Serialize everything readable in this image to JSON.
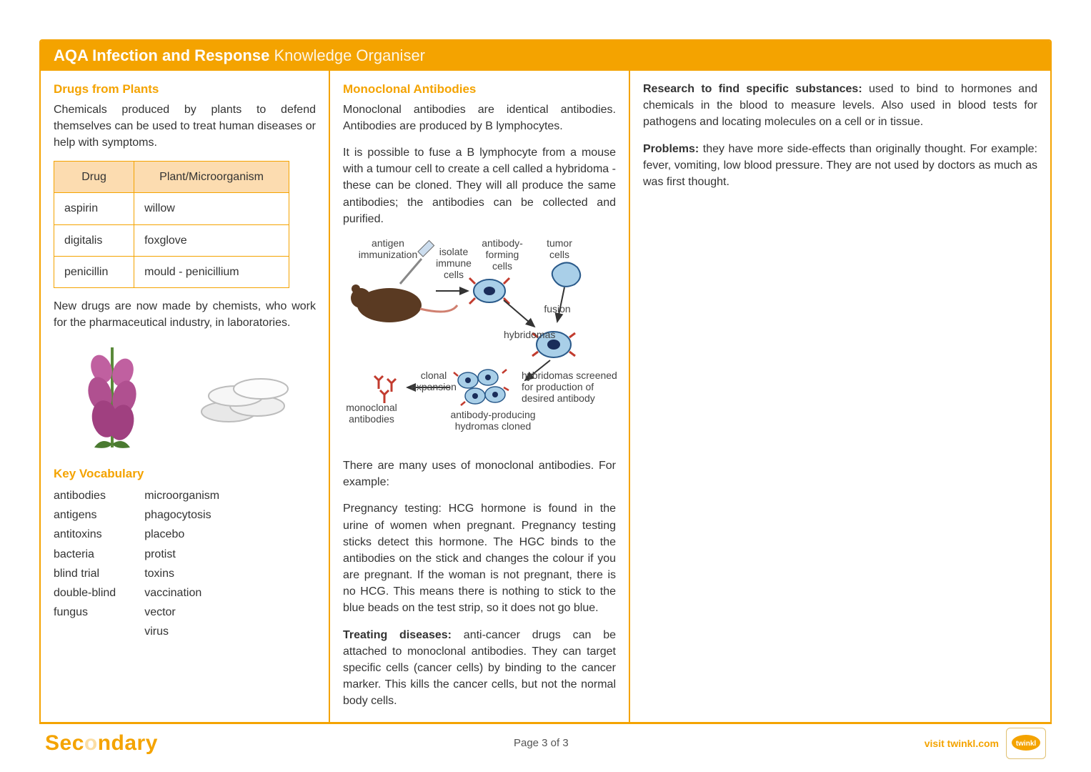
{
  "colors": {
    "accent": "#f4a300",
    "header_text": "#ffffff",
    "body_text": "#333333",
    "table_header_bg": "#fcdcb0",
    "border": "#f4a300"
  },
  "header": {
    "title_bold": "AQA Infection and Response",
    "title_light": " Knowledge Organiser"
  },
  "col1": {
    "title": "Drugs from Plants",
    "intro": "Chemicals produced by plants to defend themselves can be used to treat human diseases or help with symptoms.",
    "table": {
      "headers": [
        "Drug",
        "Plant/Microorganism"
      ],
      "rows": [
        [
          "aspirin",
          "willow"
        ],
        [
          "digitalis",
          "foxglove"
        ],
        [
          "penicillin",
          "mould - penicillium"
        ]
      ]
    },
    "outro": "New drugs are now made by chemists, who work for the pharmaceutical industry, in laboratories.",
    "vocab_title": "Key Vocabulary",
    "vocab_left": [
      "antibodies",
      "antigens",
      "antitoxins",
      "bacteria",
      "blind trial",
      "double-blind",
      "fungus"
    ],
    "vocab_right": [
      "microorganism",
      "phagocytosis",
      "placebo",
      "protist",
      "toxins",
      "vaccination",
      "vector",
      "virus"
    ]
  },
  "col2": {
    "title": "Monoclonal Antibodies",
    "p1": "Monoclonal antibodies are identical antibodies. Antibodies are produced by B lymphocytes.",
    "p2": "It is possible to fuse a B lymphocyte from a mouse with a tumour cell to create a cell called a hybridoma - these can be cloned. They will all produce the same antibodies; the antibodies can be collected and purified.",
    "diagram": {
      "labels": {
        "antigen": "antigen\nimmunization",
        "isolate": "isolate\nimmune\ncells",
        "antibody_forming": "antibody-\nforming\ncells",
        "tumor": "tumor\ncells",
        "fusion": "fusion",
        "hybridomas": "hybridomas",
        "screened": "hybridomas screened\nfor production of\ndesired antibody",
        "cloned": "antibody-producing\nhydromas cloned",
        "clonal": "clonal\nexpansion",
        "monoclonal": "monoclonal\nantibodies"
      },
      "cell_fill": "#a9cfe8",
      "cell_stroke": "#2a5a8a",
      "nucleus": "#1a2d5a",
      "antibody_color": "#c23b2e",
      "mouse_color": "#5a3a22"
    },
    "p3": "There are many uses of monoclonal antibodies. For example:",
    "p4": "Pregnancy testing: HCG hormone is found in the urine of women when pregnant. Pregnancy testing sticks detect this hormone. The HGC binds to the antibodies on the stick and changes the colour if you are pregnant. If the woman is not pregnant, there is no HCG. This means there is nothing to stick to the blue beads on the test strip, so it does not go blue.",
    "p5_bold": "Treating diseases:",
    "p5_rest": " anti-cancer drugs can be attached to monoclonal antibodies. They can target specific cells (cancer cells) by binding to the cancer marker. This kills the cancer cells, but not the normal body cells."
  },
  "col3": {
    "p1_bold": "Research to find specific substances:",
    "p1_rest": " used to bind to hormones and chemicals in the blood to measure levels. Also used in blood tests for pathogens and locating molecules on a cell or in tissue.",
    "p2_bold": "Problems:",
    "p2_rest": " they have more side-effects than originally thought. For example: fever, vomiting, low blood pressure. They are not used by doctors as much as was first thought."
  },
  "footer": {
    "brand_full": "Secondary",
    "page": "Page 3 of 3",
    "visit": "visit twinkl.com",
    "logo_text": "twinkl"
  }
}
